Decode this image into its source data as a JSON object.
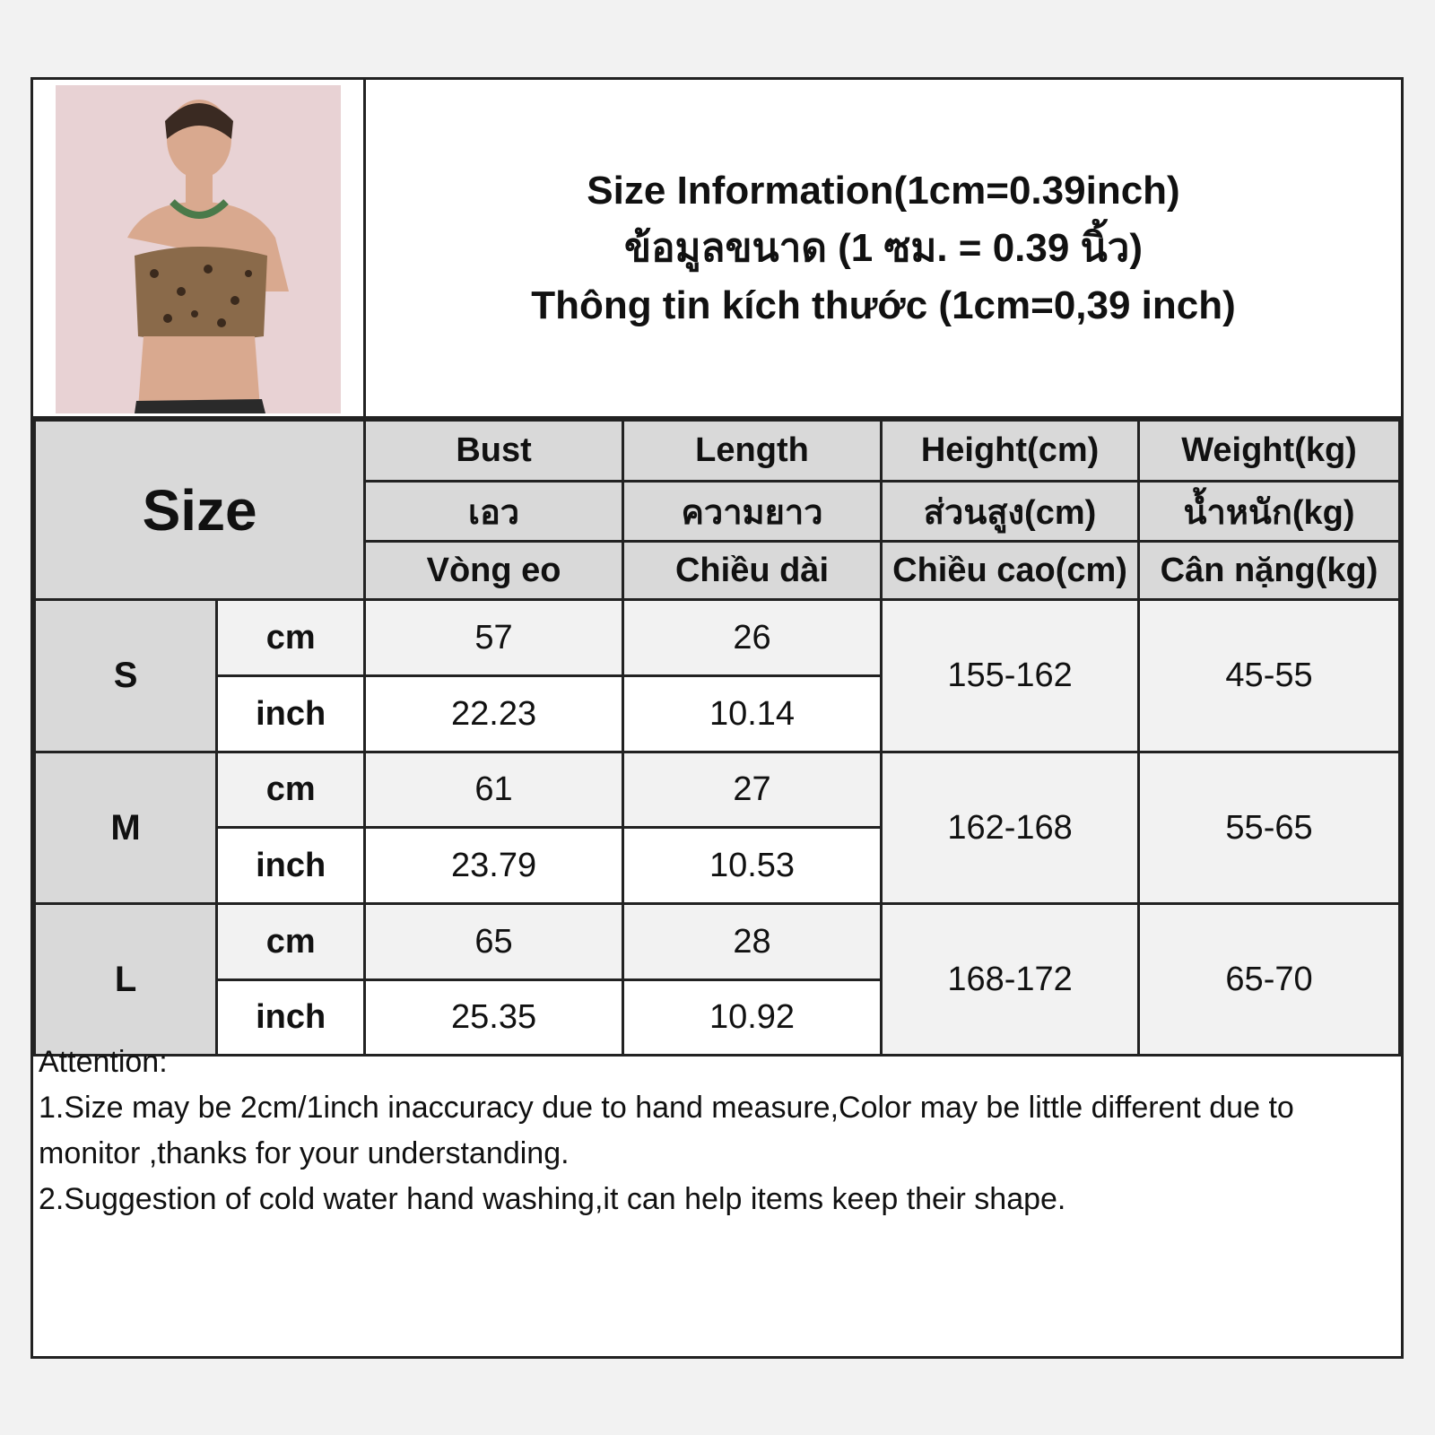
{
  "title_lines": [
    "Size Information(1cm=0.39inch)",
    "ข้อมูลขนาด (1 ซม. = 0.39 นิ้ว)",
    "Thông tin kích thước (1cm=0,39 inch)"
  ],
  "size_label": "Size",
  "columns": [
    {
      "en": "Bust",
      "th": "เอว",
      "vi": "Vòng eo"
    },
    {
      "en": "Length",
      "th": "ความยาว",
      "vi": "Chiều dài"
    },
    {
      "en": "Height(cm)",
      "th": "ส่วนสูง(cm)",
      "vi": "Chiều cao(cm)"
    },
    {
      "en": "Weight(kg)",
      "th": "น้ำหนัก(kg)",
      "vi": "Cân nặng(kg)"
    }
  ],
  "units": {
    "cm": "cm",
    "inch": "inch"
  },
  "rows": [
    {
      "size": "S",
      "cm": [
        "57",
        "26"
      ],
      "inch": [
        "22.23",
        "10.14"
      ],
      "height": "155-162",
      "weight": "45-55"
    },
    {
      "size": "M",
      "cm": [
        "61",
        "27"
      ],
      "inch": [
        "23.79",
        "10.53"
      ],
      "height": "162-168",
      "weight": "55-65"
    },
    {
      "size": "L",
      "cm": [
        "65",
        "28"
      ],
      "inch": [
        "25.35",
        "10.92"
      ],
      "height": "168-172",
      "weight": "65-70"
    }
  ],
  "notes": [
    "Attention:",
    "1.Size may be 2cm/1inch inaccuracy due to hand measure,Color may be little different due to monitor ,thanks for your understanding.",
    "2.Suggestion of cold water hand washing,it can help items keep their shape."
  ],
  "colors": {
    "header_bg": "#d9d9d9",
    "cm_row_bg": "#f2f2f2",
    "inch_row_bg": "#ffffff",
    "border": "#222222"
  }
}
